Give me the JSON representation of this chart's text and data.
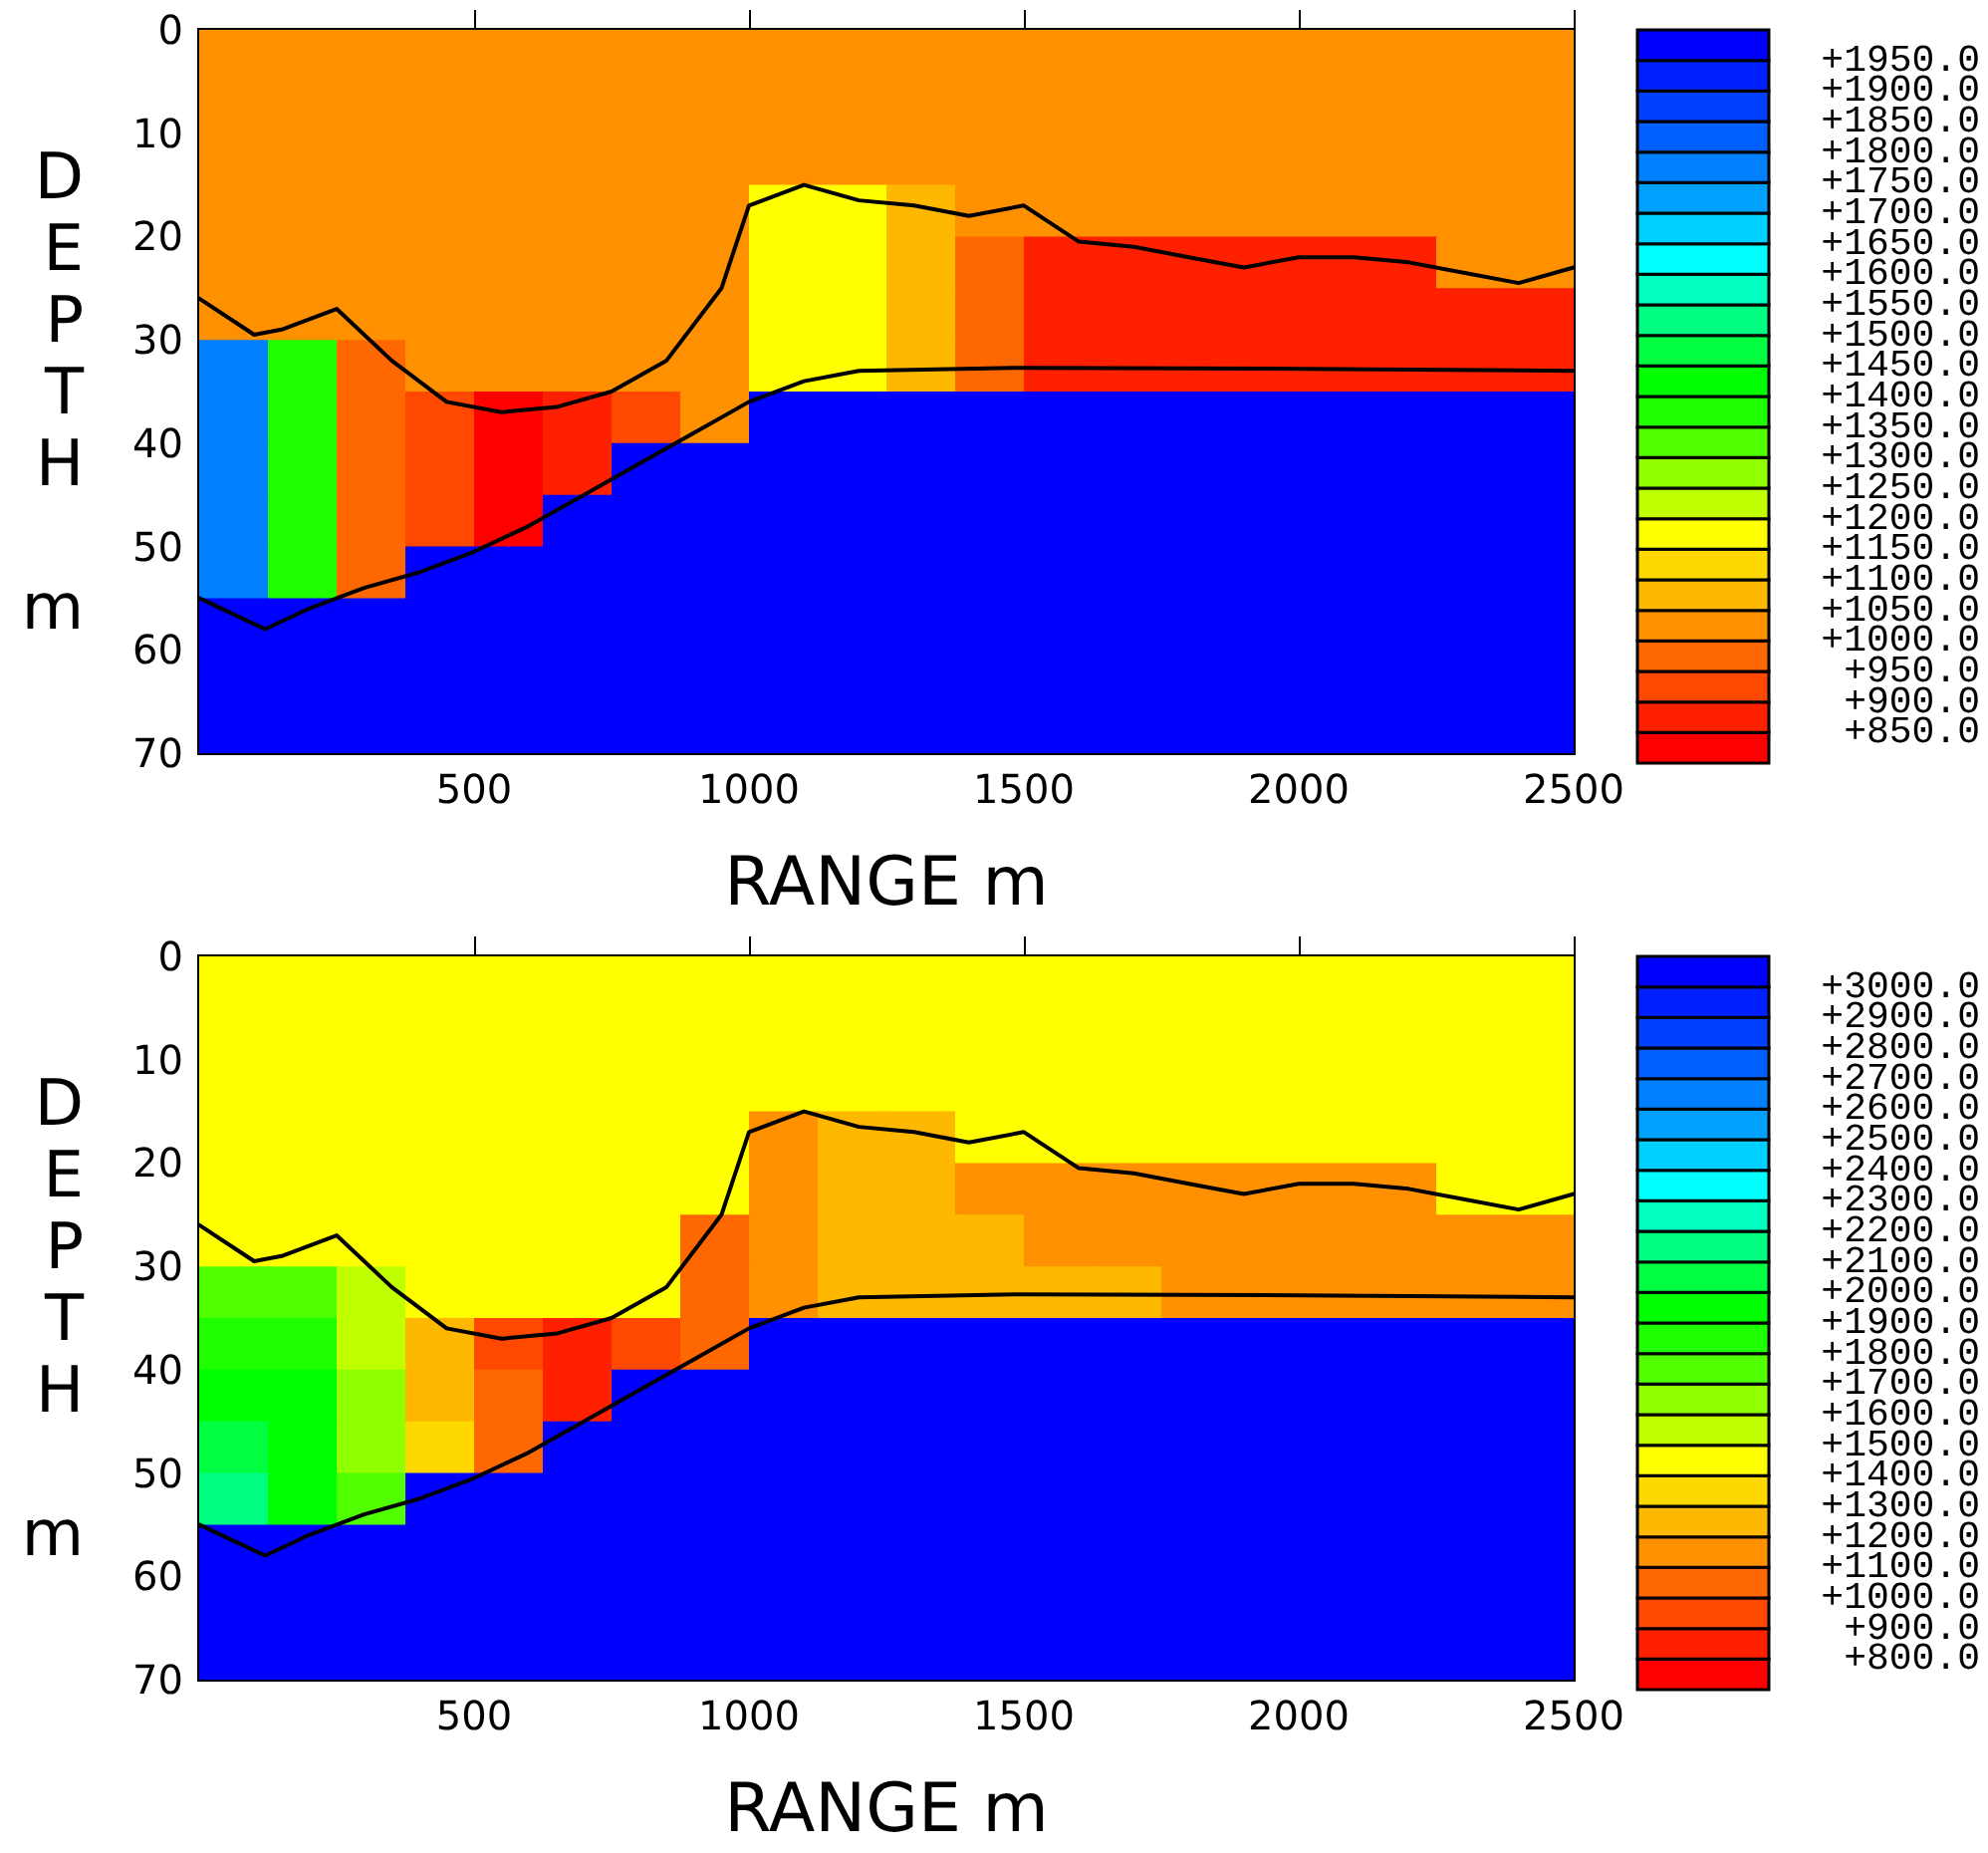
{
  "chart_data": [
    {
      "type": "heatmap",
      "xlabel": "RANGE m",
      "ylabel": "DEPTH m",
      "x": [
        62.5,
        187.5,
        312.5,
        437.5,
        562.5,
        687.5,
        812.5,
        937.5,
        1062.5,
        1187.5,
        1312.5,
        1437.5,
        1562.5,
        1687.5,
        1812.5,
        1937.5,
        2062.5,
        2187.5,
        2312.5,
        2437.5
      ],
      "y": [
        2.5,
        7.5,
        12.5,
        17.5,
        22.5,
        27.5,
        32.5,
        37.5,
        42.5,
        47.5,
        52.5,
        57.5,
        62.5,
        67.5
      ],
      "cells": [
        [
          1025,
          1025,
          1025,
          1025,
          1025,
          1025,
          1025,
          1025,
          1025,
          1025,
          1025,
          1025,
          1025,
          1025,
          1025,
          1025,
          1025,
          1025,
          1025,
          1025
        ],
        [
          1025,
          1025,
          1025,
          1025,
          1025,
          1025,
          1025,
          1025,
          1025,
          1025,
          1025,
          1025,
          1025,
          1025,
          1025,
          1025,
          1025,
          1025,
          1025,
          1025
        ],
        [
          1025,
          1025,
          1025,
          1025,
          1025,
          1025,
          1025,
          1025,
          1025,
          1025,
          1025,
          1025,
          1025,
          1025,
          1025,
          1025,
          1025,
          1025,
          1025,
          1025
        ],
        [
          1025,
          1025,
          1025,
          1025,
          1025,
          1025,
          1025,
          1025,
          1175,
          1175,
          1075,
          1025,
          1025,
          1025,
          1025,
          1025,
          1025,
          1025,
          1025,
          1025
        ],
        [
          1025,
          1025,
          1025,
          1025,
          1025,
          1025,
          1025,
          1025,
          1175,
          1175,
          1075,
          975,
          875,
          875,
          875,
          875,
          875,
          875,
          1025,
          1025
        ],
        [
          1025,
          1025,
          1025,
          1025,
          1025,
          1025,
          1025,
          1025,
          1175,
          1175,
          1075,
          975,
          875,
          875,
          875,
          875,
          875,
          875,
          875,
          875
        ],
        [
          1775,
          1375,
          975,
          1025,
          1025,
          1025,
          1025,
          1025,
          1175,
          1175,
          1075,
          975,
          875,
          875,
          875,
          875,
          875,
          875,
          875,
          875
        ],
        [
          1775,
          1375,
          975,
          925,
          825,
          875,
          925,
          1025,
          1975,
          1975,
          1975,
          1975,
          1975,
          1975,
          1975,
          1975,
          1975,
          1975,
          1975,
          1975
        ],
        [
          1775,
          1375,
          975,
          925,
          825,
          875,
          1975,
          1975,
          1975,
          1975,
          1975,
          1975,
          1975,
          1975,
          1975,
          1975,
          1975,
          1975,
          1975,
          1975
        ],
        [
          1775,
          1375,
          975,
          925,
          825,
          1975,
          1975,
          1975,
          1975,
          1975,
          1975,
          1975,
          1975,
          1975,
          1975,
          1975,
          1975,
          1975,
          1975,
          1975
        ],
        [
          1775,
          1375,
          975,
          1975,
          1975,
          1975,
          1975,
          1975,
          1975,
          1975,
          1975,
          1975,
          1975,
          1975,
          1975,
          1975,
          1975,
          1975,
          1975,
          1975
        ],
        [
          1975,
          1975,
          1975,
          1975,
          1975,
          1975,
          1975,
          1975,
          1975,
          1975,
          1975,
          1975,
          1975,
          1975,
          1975,
          1975,
          1975,
          1975,
          1975,
          1975
        ],
        [
          1975,
          1975,
          1975,
          1975,
          1975,
          1975,
          1975,
          1975,
          1975,
          1975,
          1975,
          1975,
          1975,
          1975,
          1975,
          1975,
          1975,
          1975,
          1975,
          1975
        ],
        [
          1975,
          1975,
          1975,
          1975,
          1975,
          1975,
          1975,
          1975,
          1975,
          1975,
          1975,
          1975,
          1975,
          1975,
          1975,
          1975,
          1975,
          1975,
          1975,
          1975
        ]
      ],
      "clim": [
        800,
        2000
      ],
      "cticks": [
        {
          "value": 850,
          "label": "+850.0"
        },
        {
          "value": 900,
          "label": "+900.0"
        },
        {
          "value": 950,
          "label": "+950.0"
        },
        {
          "value": 1000,
          "label": "+1000.0"
        },
        {
          "value": 1050,
          "label": "+1050.0"
        },
        {
          "value": 1100,
          "label": "+1100.0"
        },
        {
          "value": 1150,
          "label": "+1150.0"
        },
        {
          "value": 1200,
          "label": "+1200.0"
        },
        {
          "value": 1250,
          "label": "+1250.0"
        },
        {
          "value": 1300,
          "label": "+1300.0"
        },
        {
          "value": 1350,
          "label": "+1350.0"
        },
        {
          "value": 1400,
          "label": "+1400.0"
        },
        {
          "value": 1450,
          "label": "+1450.0"
        },
        {
          "value": 1500,
          "label": "+1500.0"
        },
        {
          "value": 1550,
          "label": "+1550.0"
        },
        {
          "value": 1600,
          "label": "+1600.0"
        },
        {
          "value": 1650,
          "label": "+1650.0"
        },
        {
          "value": 1700,
          "label": "+1700.0"
        },
        {
          "value": 1750,
          "label": "+1750.0"
        },
        {
          "value": 1800,
          "label": "+1800.0"
        },
        {
          "value": 1850,
          "label": "+1850.0"
        },
        {
          "value": 1900,
          "label": "+1900.0"
        },
        {
          "value": 1950,
          "label": "+1950.0"
        }
      ],
      "series": [
        {
          "type": "line",
          "color": "#000000",
          "x": [
            0,
            100,
            150,
            250,
            350,
            450,
            550,
            650,
            750,
            850,
            950,
            1000,
            1100,
            1200,
            1300,
            1400,
            1500,
            1600,
            1700,
            1800,
            1900,
            2000,
            2100,
            2200,
            2300,
            2400,
            2500
          ],
          "values": [
            26,
            29.5,
            29,
            27,
            32,
            36,
            37,
            36.5,
            35,
            32,
            25,
            17,
            15,
            16.5,
            17,
            18,
            17,
            20.5,
            21,
            22,
            23,
            22,
            22,
            22.5,
            23.5,
            24.5,
            23
          ]
        },
        {
          "type": "line",
          "color": "#000000",
          "x": [
            0,
            120,
            200,
            300,
            400,
            500,
            600,
            700,
            800,
            900,
            1000,
            1100,
            1200,
            1500,
            2000,
            2500
          ],
          "values": [
            55,
            58,
            56,
            54,
            52.5,
            50.5,
            48,
            45,
            42,
            39,
            36,
            34,
            33,
            32.7,
            32.8,
            33
          ]
        }
      ],
      "marker": "none",
      "xlim": [
        0,
        2500
      ],
      "xticks": [
        500,
        1000,
        1500,
        2000,
        2500
      ],
      "ylim": [
        70,
        0
      ],
      "yticks": [
        0,
        10,
        20,
        30,
        40,
        50,
        60,
        70
      ]
    },
    {
      "type": "heatmap",
      "xlabel": "RANGE m",
      "ylabel": "DEPTH m",
      "x": [
        62.5,
        187.5,
        312.5,
        437.5,
        562.5,
        687.5,
        812.5,
        937.5,
        1062.5,
        1187.5,
        1312.5,
        1437.5,
        1562.5,
        1687.5,
        1812.5,
        1937.5,
        2062.5,
        2187.5,
        2312.5,
        2437.5
      ],
      "y": [
        2.5,
        7.5,
        12.5,
        17.5,
        22.5,
        27.5,
        32.5,
        37.5,
        42.5,
        47.5,
        52.5,
        57.5,
        62.5,
        67.5
      ],
      "cells": [
        [
          1450,
          1450,
          1450,
          1450,
          1450,
          1450,
          1450,
          1450,
          1450,
          1450,
          1450,
          1450,
          1450,
          1450,
          1450,
          1450,
          1450,
          1450,
          1450,
          1450
        ],
        [
          1450,
          1450,
          1450,
          1450,
          1450,
          1450,
          1450,
          1450,
          1450,
          1450,
          1450,
          1450,
          1450,
          1450,
          1450,
          1450,
          1450,
          1450,
          1450,
          1450
        ],
        [
          1450,
          1450,
          1450,
          1450,
          1450,
          1450,
          1450,
          1450,
          1450,
          1450,
          1450,
          1450,
          1450,
          1450,
          1450,
          1450,
          1450,
          1450,
          1450,
          1450
        ],
        [
          1450,
          1450,
          1450,
          1450,
          1450,
          1450,
          1450,
          1450,
          1150,
          1250,
          1250,
          1450,
          1450,
          1450,
          1450,
          1450,
          1450,
          1450,
          1450,
          1450
        ],
        [
          1450,
          1450,
          1450,
          1450,
          1450,
          1450,
          1450,
          1450,
          1150,
          1250,
          1250,
          1150,
          1150,
          1150,
          1150,
          1150,
          1150,
          1150,
          1450,
          1450
        ],
        [
          1450,
          1450,
          1450,
          1450,
          1450,
          1450,
          1450,
          1050,
          1150,
          1250,
          1250,
          1250,
          1150,
          1150,
          1150,
          1150,
          1150,
          1150,
          1150,
          1150
        ],
        [
          1750,
          1750,
          1550,
          1450,
          1450,
          1450,
          1450,
          1050,
          1150,
          1250,
          1250,
          1250,
          1250,
          1250,
          1150,
          1150,
          1150,
          1150,
          1150,
          1150
        ],
        [
          1850,
          1850,
          1550,
          1250,
          950,
          850,
          950,
          1050,
          3050,
          3050,
          3050,
          3050,
          3050,
          3050,
          3050,
          3050,
          3050,
          3050,
          3050,
          3050
        ],
        [
          1950,
          1950,
          1650,
          1250,
          1050,
          850,
          3050,
          3050,
          3050,
          3050,
          3050,
          3050,
          3050,
          3050,
          3050,
          3050,
          3050,
          3050,
          3050,
          3050
        ],
        [
          2050,
          1950,
          1650,
          1350,
          1050,
          3050,
          3050,
          3050,
          3050,
          3050,
          3050,
          3050,
          3050,
          3050,
          3050,
          3050,
          3050,
          3050,
          3050,
          3050
        ],
        [
          2150,
          1950,
          1750,
          3050,
          3050,
          3050,
          3050,
          3050,
          3050,
          3050,
          3050,
          3050,
          3050,
          3050,
          3050,
          3050,
          3050,
          3050,
          3050,
          3050
        ],
        [
          3050,
          3050,
          3050,
          3050,
          3050,
          3050,
          3050,
          3050,
          3050,
          3050,
          3050,
          3050,
          3050,
          3050,
          3050,
          3050,
          3050,
          3050,
          3050,
          3050
        ],
        [
          3050,
          3050,
          3050,
          3050,
          3050,
          3050,
          3050,
          3050,
          3050,
          3050,
          3050,
          3050,
          3050,
          3050,
          3050,
          3050,
          3050,
          3050,
          3050,
          3050
        ],
        [
          3050,
          3050,
          3050,
          3050,
          3050,
          3050,
          3050,
          3050,
          3050,
          3050,
          3050,
          3050,
          3050,
          3050,
          3050,
          3050,
          3050,
          3050,
          3050,
          3050
        ]
      ],
      "clim": [
        700,
        3100
      ],
      "cticks": [
        {
          "value": 800,
          "label": "+800.0"
        },
        {
          "value": 900,
          "label": "+900.0"
        },
        {
          "value": 1000,
          "label": "+1000.0"
        },
        {
          "value": 1100,
          "label": "+1100.0"
        },
        {
          "value": 1200,
          "label": "+1200.0"
        },
        {
          "value": 1300,
          "label": "+1300.0"
        },
        {
          "value": 1400,
          "label": "+1400.0"
        },
        {
          "value": 1500,
          "label": "+1500.0"
        },
        {
          "value": 1600,
          "label": "+1600.0"
        },
        {
          "value": 1700,
          "label": "+1700.0"
        },
        {
          "value": 1800,
          "label": "+1800.0"
        },
        {
          "value": 1900,
          "label": "+1900.0"
        },
        {
          "value": 2000,
          "label": "+2000.0"
        },
        {
          "value": 2100,
          "label": "+2100.0"
        },
        {
          "value": 2200,
          "label": "+2200.0"
        },
        {
          "value": 2300,
          "label": "+2300.0"
        },
        {
          "value": 2400,
          "label": "+2400.0"
        },
        {
          "value": 2500,
          "label": "+2500.0"
        },
        {
          "value": 2600,
          "label": "+2600.0"
        },
        {
          "value": 2700,
          "label": "+2700.0"
        },
        {
          "value": 2800,
          "label": "+2800.0"
        },
        {
          "value": 2900,
          "label": "+2900.0"
        },
        {
          "value": 3000,
          "label": "+3000.0"
        }
      ],
      "series": [
        {
          "type": "line",
          "color": "#000000",
          "x": [
            0,
            100,
            150,
            250,
            350,
            450,
            550,
            650,
            750,
            850,
            950,
            1000,
            1100,
            1200,
            1300,
            1400,
            1500,
            1600,
            1700,
            1800,
            1900,
            2000,
            2100,
            2200,
            2300,
            2400,
            2500
          ],
          "values": [
            26,
            29.5,
            29,
            27,
            32,
            36,
            37,
            36.5,
            35,
            32,
            25,
            17,
            15,
            16.5,
            17,
            18,
            17,
            20.5,
            21,
            22,
            23,
            22,
            22,
            22.5,
            23.5,
            24.5,
            23
          ]
        },
        {
          "type": "line",
          "color": "#000000",
          "x": [
            0,
            120,
            200,
            300,
            400,
            500,
            600,
            700,
            800,
            900,
            1000,
            1100,
            1200,
            1500,
            2000,
            2500
          ],
          "values": [
            55,
            58,
            56,
            54,
            52.5,
            50.5,
            48,
            45,
            42,
            39,
            36,
            34,
            33,
            32.7,
            32.8,
            33
          ]
        }
      ],
      "marker": "none",
      "xlim": [
        0,
        2500
      ],
      "xticks": [
        500,
        1000,
        1500,
        2000,
        2500
      ],
      "ylim": [
        70,
        0
      ],
      "yticks": [
        0,
        10,
        20,
        30,
        40,
        50,
        60,
        70
      ]
    }
  ]
}
